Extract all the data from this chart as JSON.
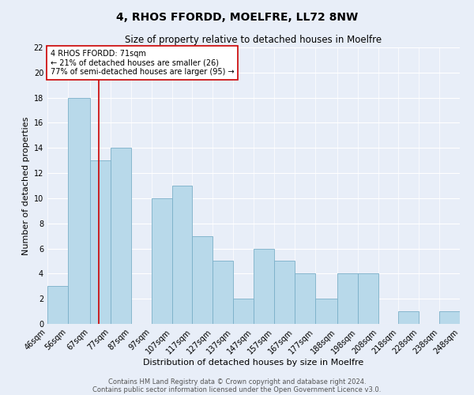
{
  "title": "4, RHOS FFORDD, MOELFRE, LL72 8NW",
  "subtitle": "Size of property relative to detached houses in Moelfre",
  "xlabel": "Distribution of detached houses by size in Moelfre",
  "ylabel": "Number of detached properties",
  "footer_lines": [
    "Contains HM Land Registry data © Crown copyright and database right 2024.",
    "Contains public sector information licensed under the Open Government Licence v3.0."
  ],
  "bin_labels": [
    "46sqm",
    "56sqm",
    "67sqm",
    "77sqm",
    "87sqm",
    "97sqm",
    "107sqm",
    "117sqm",
    "127sqm",
    "137sqm",
    "147sqm",
    "157sqm",
    "167sqm",
    "177sqm",
    "188sqm",
    "198sqm",
    "208sqm",
    "218sqm",
    "228sqm",
    "238sqm",
    "248sqm"
  ],
  "bin_edges": [
    46,
    56,
    67,
    77,
    87,
    97,
    107,
    117,
    127,
    137,
    147,
    157,
    167,
    177,
    188,
    198,
    208,
    218,
    228,
    238,
    248
  ],
  "counts": [
    3,
    18,
    13,
    14,
    0,
    10,
    11,
    7,
    5,
    2,
    6,
    5,
    4,
    2,
    4,
    4,
    0,
    1,
    0,
    1
  ],
  "bar_color": "#b8d9ea",
  "bar_edge_color": "#7aafc8",
  "vline_x": 71,
  "vline_color": "#cc0000",
  "annotation_text": "4 RHOS FFORDD: 71sqm\n← 21% of detached houses are smaller (26)\n77% of semi-detached houses are larger (95) →",
  "annotation_box_color": "white",
  "annotation_box_edge": "#cc0000",
  "ylim": [
    0,
    22
  ],
  "yticks": [
    0,
    2,
    4,
    6,
    8,
    10,
    12,
    14,
    16,
    18,
    20,
    22
  ],
  "background_color": "#e8eef8",
  "plot_background": "#e8eef8",
  "title_fontsize": 10,
  "subtitle_fontsize": 8.5,
  "xlabel_fontsize": 8,
  "ylabel_fontsize": 8,
  "tick_fontsize": 7,
  "footer_fontsize": 6,
  "annotation_fontsize": 7
}
